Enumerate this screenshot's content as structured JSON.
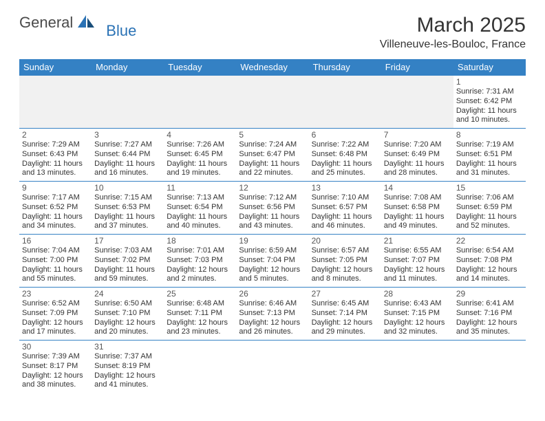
{
  "brand": {
    "main": "General",
    "sub": "Blue"
  },
  "title": "March 2025",
  "location": "Villeneuve-les-Bouloc, France",
  "colors": {
    "header_bg": "#3481c4",
    "header_text": "#ffffff",
    "cell_border": "#3481c4",
    "shaded_bg": "#f1f1f1",
    "body_text": "#333333",
    "logo_sub": "#2a72b5"
  },
  "day_headers": [
    "Sunday",
    "Monday",
    "Tuesday",
    "Wednesday",
    "Thursday",
    "Friday",
    "Saturday"
  ],
  "weeks": [
    [
      {
        "blank": true,
        "shaded": true
      },
      {
        "blank": true,
        "shaded": true
      },
      {
        "blank": true,
        "shaded": true
      },
      {
        "blank": true,
        "shaded": true
      },
      {
        "blank": true,
        "shaded": true
      },
      {
        "blank": true,
        "shaded": true
      },
      {
        "day": "1",
        "sunrise": "Sunrise: 7:31 AM",
        "sunset": "Sunset: 6:42 PM",
        "daylight1": "Daylight: 11 hours",
        "daylight2": "and 10 minutes."
      }
    ],
    [
      {
        "day": "2",
        "sunrise": "Sunrise: 7:29 AM",
        "sunset": "Sunset: 6:43 PM",
        "daylight1": "Daylight: 11 hours",
        "daylight2": "and 13 minutes."
      },
      {
        "day": "3",
        "sunrise": "Sunrise: 7:27 AM",
        "sunset": "Sunset: 6:44 PM",
        "daylight1": "Daylight: 11 hours",
        "daylight2": "and 16 minutes."
      },
      {
        "day": "4",
        "sunrise": "Sunrise: 7:26 AM",
        "sunset": "Sunset: 6:45 PM",
        "daylight1": "Daylight: 11 hours",
        "daylight2": "and 19 minutes."
      },
      {
        "day": "5",
        "sunrise": "Sunrise: 7:24 AM",
        "sunset": "Sunset: 6:47 PM",
        "daylight1": "Daylight: 11 hours",
        "daylight2": "and 22 minutes."
      },
      {
        "day": "6",
        "sunrise": "Sunrise: 7:22 AM",
        "sunset": "Sunset: 6:48 PM",
        "daylight1": "Daylight: 11 hours",
        "daylight2": "and 25 minutes."
      },
      {
        "day": "7",
        "sunrise": "Sunrise: 7:20 AM",
        "sunset": "Sunset: 6:49 PM",
        "daylight1": "Daylight: 11 hours",
        "daylight2": "and 28 minutes."
      },
      {
        "day": "8",
        "sunrise": "Sunrise: 7:19 AM",
        "sunset": "Sunset: 6:51 PM",
        "daylight1": "Daylight: 11 hours",
        "daylight2": "and 31 minutes."
      }
    ],
    [
      {
        "day": "9",
        "sunrise": "Sunrise: 7:17 AM",
        "sunset": "Sunset: 6:52 PM",
        "daylight1": "Daylight: 11 hours",
        "daylight2": "and 34 minutes."
      },
      {
        "day": "10",
        "sunrise": "Sunrise: 7:15 AM",
        "sunset": "Sunset: 6:53 PM",
        "daylight1": "Daylight: 11 hours",
        "daylight2": "and 37 minutes."
      },
      {
        "day": "11",
        "sunrise": "Sunrise: 7:13 AM",
        "sunset": "Sunset: 6:54 PM",
        "daylight1": "Daylight: 11 hours",
        "daylight2": "and 40 minutes."
      },
      {
        "day": "12",
        "sunrise": "Sunrise: 7:12 AM",
        "sunset": "Sunset: 6:56 PM",
        "daylight1": "Daylight: 11 hours",
        "daylight2": "and 43 minutes."
      },
      {
        "day": "13",
        "sunrise": "Sunrise: 7:10 AM",
        "sunset": "Sunset: 6:57 PM",
        "daylight1": "Daylight: 11 hours",
        "daylight2": "and 46 minutes."
      },
      {
        "day": "14",
        "sunrise": "Sunrise: 7:08 AM",
        "sunset": "Sunset: 6:58 PM",
        "daylight1": "Daylight: 11 hours",
        "daylight2": "and 49 minutes."
      },
      {
        "day": "15",
        "sunrise": "Sunrise: 7:06 AM",
        "sunset": "Sunset: 6:59 PM",
        "daylight1": "Daylight: 11 hours",
        "daylight2": "and 52 minutes."
      }
    ],
    [
      {
        "day": "16",
        "sunrise": "Sunrise: 7:04 AM",
        "sunset": "Sunset: 7:00 PM",
        "daylight1": "Daylight: 11 hours",
        "daylight2": "and 55 minutes."
      },
      {
        "day": "17",
        "sunrise": "Sunrise: 7:03 AM",
        "sunset": "Sunset: 7:02 PM",
        "daylight1": "Daylight: 11 hours",
        "daylight2": "and 59 minutes."
      },
      {
        "day": "18",
        "sunrise": "Sunrise: 7:01 AM",
        "sunset": "Sunset: 7:03 PM",
        "daylight1": "Daylight: 12 hours",
        "daylight2": "and 2 minutes."
      },
      {
        "day": "19",
        "sunrise": "Sunrise: 6:59 AM",
        "sunset": "Sunset: 7:04 PM",
        "daylight1": "Daylight: 12 hours",
        "daylight2": "and 5 minutes."
      },
      {
        "day": "20",
        "sunrise": "Sunrise: 6:57 AM",
        "sunset": "Sunset: 7:05 PM",
        "daylight1": "Daylight: 12 hours",
        "daylight2": "and 8 minutes."
      },
      {
        "day": "21",
        "sunrise": "Sunrise: 6:55 AM",
        "sunset": "Sunset: 7:07 PM",
        "daylight1": "Daylight: 12 hours",
        "daylight2": "and 11 minutes."
      },
      {
        "day": "22",
        "sunrise": "Sunrise: 6:54 AM",
        "sunset": "Sunset: 7:08 PM",
        "daylight1": "Daylight: 12 hours",
        "daylight2": "and 14 minutes."
      }
    ],
    [
      {
        "day": "23",
        "sunrise": "Sunrise: 6:52 AM",
        "sunset": "Sunset: 7:09 PM",
        "daylight1": "Daylight: 12 hours",
        "daylight2": "and 17 minutes."
      },
      {
        "day": "24",
        "sunrise": "Sunrise: 6:50 AM",
        "sunset": "Sunset: 7:10 PM",
        "daylight1": "Daylight: 12 hours",
        "daylight2": "and 20 minutes."
      },
      {
        "day": "25",
        "sunrise": "Sunrise: 6:48 AM",
        "sunset": "Sunset: 7:11 PM",
        "daylight1": "Daylight: 12 hours",
        "daylight2": "and 23 minutes."
      },
      {
        "day": "26",
        "sunrise": "Sunrise: 6:46 AM",
        "sunset": "Sunset: 7:13 PM",
        "daylight1": "Daylight: 12 hours",
        "daylight2": "and 26 minutes."
      },
      {
        "day": "27",
        "sunrise": "Sunrise: 6:45 AM",
        "sunset": "Sunset: 7:14 PM",
        "daylight1": "Daylight: 12 hours",
        "daylight2": "and 29 minutes."
      },
      {
        "day": "28",
        "sunrise": "Sunrise: 6:43 AM",
        "sunset": "Sunset: 7:15 PM",
        "daylight1": "Daylight: 12 hours",
        "daylight2": "and 32 minutes."
      },
      {
        "day": "29",
        "sunrise": "Sunrise: 6:41 AM",
        "sunset": "Sunset: 7:16 PM",
        "daylight1": "Daylight: 12 hours",
        "daylight2": "and 35 minutes."
      }
    ],
    [
      {
        "day": "30",
        "sunrise": "Sunrise: 7:39 AM",
        "sunset": "Sunset: 8:17 PM",
        "daylight1": "Daylight: 12 hours",
        "daylight2": "and 38 minutes."
      },
      {
        "day": "31",
        "sunrise": "Sunrise: 7:37 AM",
        "sunset": "Sunset: 8:19 PM",
        "daylight1": "Daylight: 12 hours",
        "daylight2": "and 41 minutes."
      },
      {
        "blank": true
      },
      {
        "blank": true
      },
      {
        "blank": true
      },
      {
        "blank": true
      },
      {
        "blank": true
      }
    ]
  ]
}
